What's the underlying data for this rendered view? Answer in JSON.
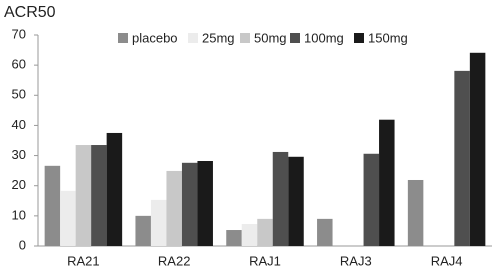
{
  "chart_data": {
    "type": "bar",
    "title": "ACR50",
    "categories": [
      "RA21",
      "RA22",
      "RAJ1",
      "RAJ3",
      "RAJ4"
    ],
    "series": [
      {
        "name": "placebo",
        "color": "#8c8c8c",
        "values": [
          26.6,
          10,
          5.3,
          9,
          21.9
        ]
      },
      {
        "name": "25mg",
        "color": "#ececec",
        "values": [
          18.3,
          15.3,
          7.3,
          null,
          null
        ]
      },
      {
        "name": "50mg",
        "color": "#c8c8c8",
        "values": [
          33.5,
          24.9,
          9,
          null,
          null
        ]
      },
      {
        "name": "100mg",
        "color": "#4f4f4f",
        "values": [
          33.5,
          27.6,
          31.2,
          30.6,
          58.1
        ]
      },
      {
        "name": "150mg",
        "color": "#1a1a1a",
        "values": [
          37.5,
          28.2,
          29.6,
          41.9,
          64.1
        ]
      }
    ],
    "ylim": [
      0,
      70
    ],
    "yticks": [
      0,
      10,
      20,
      30,
      40,
      50,
      60,
      70
    ],
    "grid": false
  }
}
